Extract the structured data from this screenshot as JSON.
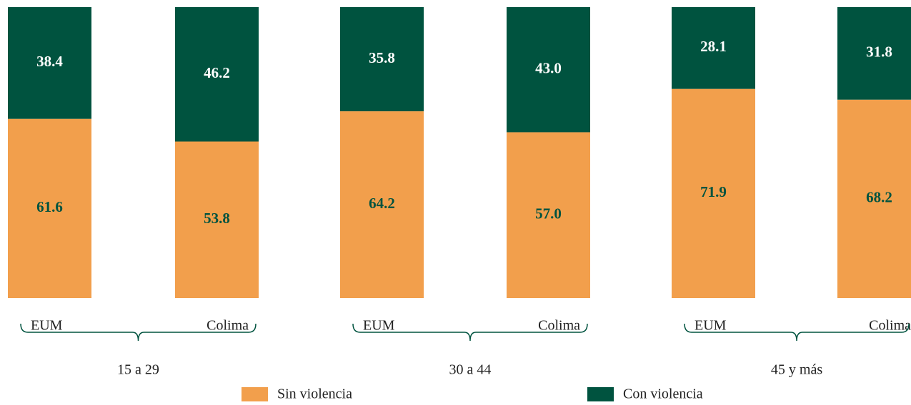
{
  "chart_data": {
    "type": "stacked_bar",
    "categories": [
      "EUM",
      "Colima",
      "EUM",
      "Colima",
      "EUM",
      "Colima"
    ],
    "groups": [
      "15 a 29",
      "30 a 44",
      "45 y más"
    ],
    "series": [
      {
        "name": "Sin violencia",
        "color": "#f29f4c",
        "label_color": "#00533f",
        "values": [
          61.6,
          53.8,
          64.2,
          57.0,
          71.9,
          68.2
        ],
        "value_labels": [
          "61.6",
          "53.8",
          "64.2",
          "57.0",
          "71.9",
          "68.2"
        ]
      },
      {
        "name": "Con violencia",
        "color": "#00533f",
        "label_color": "#ffffff",
        "values": [
          38.4,
          46.2,
          35.8,
          43.0,
          28.1,
          31.8
        ],
        "value_labels": [
          "38.4",
          "46.2",
          "35.8",
          "43.0",
          "28.1",
          "31.8"
        ]
      }
    ]
  }
}
